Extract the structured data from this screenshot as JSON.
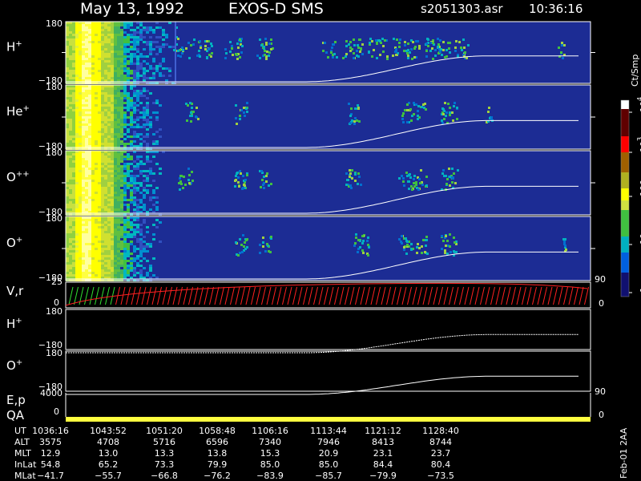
{
  "header": {
    "date": "May 13, 1992",
    "instrument": "EXOS-D SMS",
    "file": "s2051303.asr",
    "time": "10:36:16"
  },
  "panels": [
    {
      "label": {
        "base": "H",
        "sup": "+"
      },
      "top": "180",
      "bottom": "−180"
    },
    {
      "label": {
        "base": "He",
        "sup": "+"
      },
      "top": "180",
      "bottom": "−180"
    },
    {
      "label": {
        "base": "O",
        "sup": "++"
      },
      "top": "180",
      "bottom": "−180"
    },
    {
      "label": {
        "base": "O",
        "sup": "+"
      },
      "top": "180",
      "bottom": "−180"
    }
  ],
  "vr": {
    "label": "V,r",
    "top": "25",
    "bottom": "0",
    "right_top": "90",
    "right_bottom": "0"
  },
  "lower": [
    {
      "label": {
        "base": "H",
        "sup": "+"
      },
      "top": "180",
      "bottom": "−180"
    },
    {
      "label": {
        "base": "O",
        "sup": "+"
      },
      "top": "180",
      "bottom": "−180"
    }
  ],
  "ep": {
    "label": "E,p",
    "qa": "QA",
    "top": "4000",
    "bottom": "0",
    "right_top": "90",
    "right_bottom": "0"
  },
  "colorbar": {
    "unit": "Ct/Smp",
    "ticks": [
      {
        "base": "10",
        "sup": "4"
      },
      {
        "base": "10",
        "sup": "3"
      },
      {
        "base": "100"
      },
      {
        "base": "10"
      },
      {
        "base": "1"
      }
    ]
  },
  "table": {
    "row_labels": [
      "UT",
      "ALT",
      "MLT",
      "InLat",
      "MLat"
    ],
    "rows": [
      [
        "1036:16",
        "1043:52",
        "1051:20",
        "1058:48",
        "1106:16",
        "1113:44",
        "1121:12",
        "1128:40"
      ],
      [
        "3575",
        "4708",
        "5716",
        "6596",
        "7340",
        "7946",
        "8413",
        "8744"
      ],
      [
        "12.9",
        "13.0",
        "13.3",
        "13.8",
        "15.3",
        "20.9",
        "23.1",
        "23.7"
      ],
      [
        "54.8",
        "65.2",
        "73.3",
        "79.9",
        "85.0",
        "85.0",
        "84.4",
        "80.4"
      ],
      [
        "−41.7",
        "−55.7",
        "−66.8",
        "−76.2",
        "−83.9",
        "−85.7",
        "−79.9",
        "−73.5"
      ]
    ]
  },
  "footer": "Feb-01 2AA"
}
